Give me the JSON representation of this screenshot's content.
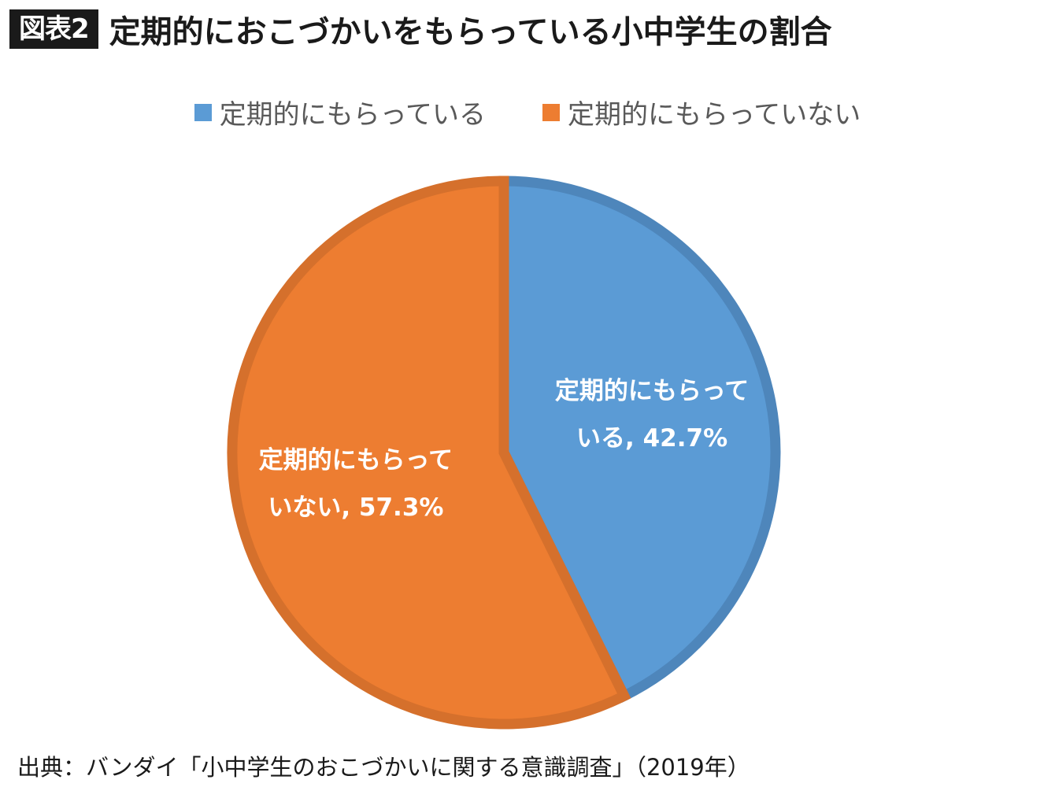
{
  "figure": {
    "badge": "図表2",
    "title": "定期的におこづかいをもらっている小中学生の割合",
    "source": "出典：バンダイ「小中学生のおこづかいに関する意識調査」（2019年）"
  },
  "chart_data": {
    "type": "pie",
    "title": "定期的におこづかいをもらっている小中学生の割合",
    "legend_placement": "top",
    "slices": [
      {
        "name": "定期的にもらっている",
        "value": 42.7,
        "color": "#5B9BD5",
        "border_color": "#4E86BB",
        "label_line1": "定期的にもらって",
        "label_line2": "いる, 42.7%"
      },
      {
        "name": "定期的にもらっていない",
        "value": 57.3,
        "color": "#ED7D31",
        "border_color": "#D5702C",
        "label_line1": "定期的にもらって",
        "label_line2": "いない, 57.3%"
      }
    ]
  }
}
